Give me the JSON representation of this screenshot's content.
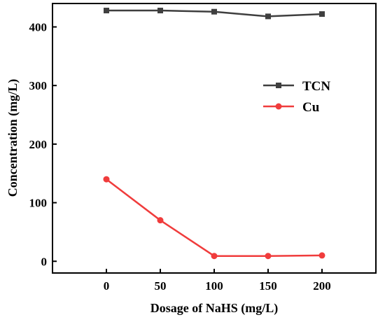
{
  "chart_data": {
    "type": "line",
    "title": "",
    "xlabel": "Dosage of NaHS (mg/L)",
    "ylabel": "Concentration (mg/L)",
    "x": [
      0,
      50,
      100,
      150,
      200
    ],
    "xlim": [
      -50,
      250
    ],
    "ylim": [
      -20,
      440
    ],
    "xticks": [
      0,
      50,
      100,
      150,
      200
    ],
    "yticks": [
      0,
      100,
      200,
      300,
      400
    ],
    "grid": false,
    "legend_position": "upper-right",
    "series": [
      {
        "name": "TCN",
        "color": "#3f3f3f",
        "marker": "square",
        "values": [
          428,
          428,
          426,
          418,
          422
        ]
      },
      {
        "name": "Cu",
        "color": "#f03c3c",
        "marker": "circle",
        "values": [
          140,
          70,
          9,
          9,
          10
        ]
      }
    ]
  }
}
